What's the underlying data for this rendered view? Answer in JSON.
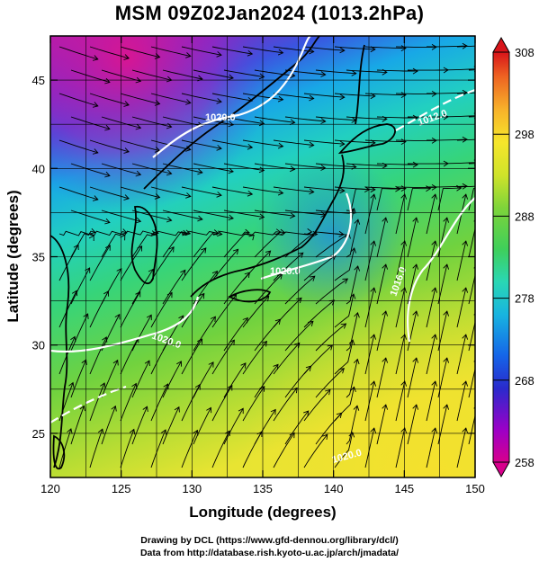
{
  "title": "MSM 09Z02Jan2024 (1013.2hPa)",
  "axes": {
    "xlabel": "Longitude (degrees)",
    "ylabel": "Latitude  (degrees)",
    "xticks": [
      "120",
      "125",
      "130",
      "135",
      "140",
      "145",
      "150"
    ],
    "yticks": [
      "25",
      "30",
      "35",
      "40",
      "45"
    ],
    "xlim": [
      120,
      150
    ],
    "ylim": [
      22.5,
      47.5
    ]
  },
  "colorbar": {
    "labels": [
      "308",
      "298",
      "288",
      "278",
      "268",
      "258"
    ],
    "range": [
      258,
      308
    ],
    "palette": [
      "#d8008c",
      "#9b00c8",
      "#2a2acc",
      "#1565e8",
      "#18b4e0",
      "#2ad7b4",
      "#3fcf5a",
      "#7ed43a",
      "#cfe32a",
      "#f6e62b",
      "#f7b22a",
      "#ee6422",
      "#d8141a"
    ]
  },
  "isobars": [
    {
      "label": "1020.0"
    },
    {
      "label": "1012.0"
    },
    {
      "label": "1016.0"
    },
    {
      "label": "1020.0"
    },
    {
      "label": "1020.0"
    },
    {
      "label": "1020.0"
    }
  ],
  "credits": {
    "line1": "Drawing by DCL (https://www.gfd-dennou.org/library/dcl/)",
    "line2": "Data from http://database.rish.kyoto-u.ac.jp/arch/jmadata/"
  }
}
